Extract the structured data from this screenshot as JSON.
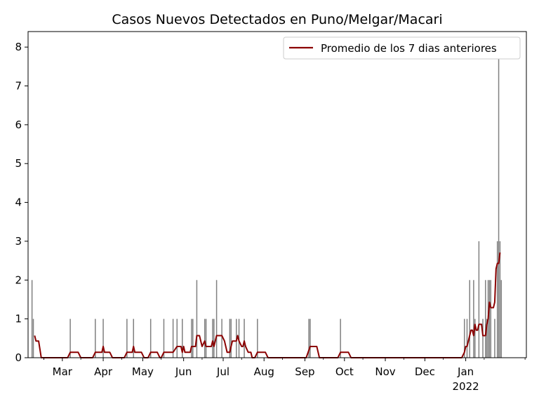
{
  "chart_data": {
    "type": "bar",
    "title": "Casos Nuevos Detectados en Puno/Melgar/Macari",
    "xlabel": "",
    "ylabel": "",
    "x_range": [
      "2021-02-03",
      "2022-02-16"
    ],
    "ylim": [
      0,
      8.4
    ],
    "y_ticks": [
      0,
      1,
      2,
      3,
      4,
      5,
      6,
      7,
      8
    ],
    "x_ticks": [
      {
        "date": "2021-03-01",
        "label": "Mar",
        "sublabel": ""
      },
      {
        "date": "2021-04-01",
        "label": "Apr",
        "sublabel": ""
      },
      {
        "date": "2021-05-01",
        "label": "May",
        "sublabel": ""
      },
      {
        "date": "2021-06-01",
        "label": "Jun",
        "sublabel": ""
      },
      {
        "date": "2021-07-01",
        "label": "Jul",
        "sublabel": ""
      },
      {
        "date": "2021-08-01",
        "label": "Aug",
        "sublabel": ""
      },
      {
        "date": "2021-09-01",
        "label": "Sep",
        "sublabel": ""
      },
      {
        "date": "2021-10-01",
        "label": "Oct",
        "sublabel": ""
      },
      {
        "date": "2021-11-01",
        "label": "Nov",
        "sublabel": ""
      },
      {
        "date": "2021-12-01",
        "label": "Dec",
        "sublabel": ""
      },
      {
        "date": "2022-01-01",
        "label": "Jan",
        "sublabel": "2022"
      }
    ],
    "legend": {
      "placement": "top-right",
      "entries": [
        "Promedio de los 7 dias anteriores"
      ]
    },
    "grid": false,
    "bar_color": "#808080",
    "line_color": "#8b0000",
    "series": [
      {
        "name": "",
        "kind": "bar",
        "points": [
          [
            "2021-02-06",
            2
          ],
          [
            "2021-02-07",
            1
          ],
          [
            "2021-03-07",
            1
          ],
          [
            "2021-03-26",
            1
          ],
          [
            "2021-04-01",
            1
          ],
          [
            "2021-04-19",
            1
          ],
          [
            "2021-04-24",
            1
          ],
          [
            "2021-05-07",
            1
          ],
          [
            "2021-05-17",
            1
          ],
          [
            "2021-05-24",
            1
          ],
          [
            "2021-05-27",
            1
          ],
          [
            "2021-05-31",
            1
          ],
          [
            "2021-06-07",
            1
          ],
          [
            "2021-06-08",
            1
          ],
          [
            "2021-06-11",
            2
          ],
          [
            "2021-06-17",
            1
          ],
          [
            "2021-06-18",
            1
          ],
          [
            "2021-06-23",
            1
          ],
          [
            "2021-06-24",
            1
          ],
          [
            "2021-06-26",
            2
          ],
          [
            "2021-06-30",
            1
          ],
          [
            "2021-07-06",
            1
          ],
          [
            "2021-07-07",
            1
          ],
          [
            "2021-07-11",
            1
          ],
          [
            "2021-07-13",
            1
          ],
          [
            "2021-07-17",
            1
          ],
          [
            "2021-07-27",
            1
          ],
          [
            "2021-09-04",
            1
          ],
          [
            "2021-09-05",
            1
          ],
          [
            "2021-09-28",
            1
          ],
          [
            "2021-12-31",
            1
          ],
          [
            "2022-01-02",
            1
          ],
          [
            "2022-01-04",
            2
          ],
          [
            "2022-01-07",
            2
          ],
          [
            "2022-01-08",
            1
          ],
          [
            "2022-01-11",
            3
          ],
          [
            "2022-01-14",
            1
          ],
          [
            "2022-01-16",
            2
          ],
          [
            "2022-01-17",
            1
          ],
          [
            "2022-01-18",
            2
          ],
          [
            "2022-01-19",
            2
          ],
          [
            "2022-01-20",
            2
          ],
          [
            "2022-01-23",
            1
          ],
          [
            "2022-01-25",
            3
          ],
          [
            "2022-01-26",
            8
          ],
          [
            "2022-01-27",
            3
          ],
          [
            "2022-01-28",
            2
          ]
        ]
      },
      {
        "name": "Promedio de los 7 dias anteriores",
        "kind": "line",
        "points": [
          [
            "2021-02-08",
            0.57
          ],
          [
            "2021-02-09",
            0.43
          ],
          [
            "2021-02-11",
            0.43
          ],
          [
            "2021-02-13",
            0.0
          ],
          [
            "2021-03-05",
            0.0
          ],
          [
            "2021-03-07",
            0.14
          ],
          [
            "2021-03-13",
            0.14
          ],
          [
            "2021-03-15",
            0.0
          ],
          [
            "2021-03-24",
            0.0
          ],
          [
            "2021-03-26",
            0.14
          ],
          [
            "2021-03-31",
            0.14
          ],
          [
            "2021-04-01",
            0.29
          ],
          [
            "2021-04-02",
            0.14
          ],
          [
            "2021-04-06",
            0.14
          ],
          [
            "2021-04-08",
            0.0
          ],
          [
            "2021-04-17",
            0.0
          ],
          [
            "2021-04-19",
            0.14
          ],
          [
            "2021-04-23",
            0.14
          ],
          [
            "2021-04-24",
            0.29
          ],
          [
            "2021-04-25",
            0.14
          ],
          [
            "2021-04-30",
            0.14
          ],
          [
            "2021-05-02",
            0.0
          ],
          [
            "2021-05-05",
            0.0
          ],
          [
            "2021-05-07",
            0.14
          ],
          [
            "2021-05-12",
            0.14
          ],
          [
            "2021-05-14",
            0.0
          ],
          [
            "2021-05-15",
            0.0
          ],
          [
            "2021-05-17",
            0.14
          ],
          [
            "2021-05-23",
            0.14
          ],
          [
            "2021-05-24",
            0.14
          ],
          [
            "2021-05-27",
            0.29
          ],
          [
            "2021-05-30",
            0.29
          ],
          [
            "2021-05-31",
            0.14
          ],
          [
            "2021-06-01",
            0.29
          ],
          [
            "2021-06-02",
            0.14
          ],
          [
            "2021-06-06",
            0.14
          ],
          [
            "2021-06-07",
            0.29
          ],
          [
            "2021-06-10",
            0.29
          ],
          [
            "2021-06-11",
            0.57
          ],
          [
            "2021-06-13",
            0.57
          ],
          [
            "2021-06-15",
            0.29
          ],
          [
            "2021-06-17",
            0.43
          ],
          [
            "2021-06-18",
            0.29
          ],
          [
            "2021-06-22",
            0.29
          ],
          [
            "2021-06-23",
            0.43
          ],
          [
            "2021-06-24",
            0.29
          ],
          [
            "2021-06-26",
            0.57
          ],
          [
            "2021-06-30",
            0.57
          ],
          [
            "2021-07-02",
            0.43
          ],
          [
            "2021-07-04",
            0.14
          ],
          [
            "2021-07-06",
            0.14
          ],
          [
            "2021-07-07",
            0.29
          ],
          [
            "2021-07-08",
            0.43
          ],
          [
            "2021-07-11",
            0.43
          ],
          [
            "2021-07-12",
            0.57
          ],
          [
            "2021-07-13",
            0.43
          ],
          [
            "2021-07-15",
            0.29
          ],
          [
            "2021-07-16",
            0.29
          ],
          [
            "2021-07-17",
            0.43
          ],
          [
            "2021-07-18",
            0.29
          ],
          [
            "2021-07-20",
            0.14
          ],
          [
            "2021-07-22",
            0.14
          ],
          [
            "2021-07-23",
            0.0
          ],
          [
            "2021-07-25",
            0.0
          ],
          [
            "2021-07-27",
            0.14
          ],
          [
            "2021-08-02",
            0.14
          ],
          [
            "2021-08-04",
            0.0
          ],
          [
            "2021-09-02",
            0.0
          ],
          [
            "2021-09-05",
            0.29
          ],
          [
            "2021-09-10",
            0.29
          ],
          [
            "2021-09-12",
            0.0
          ],
          [
            "2021-09-26",
            0.0
          ],
          [
            "2021-09-28",
            0.14
          ],
          [
            "2021-10-04",
            0.14
          ],
          [
            "2021-10-06",
            0.0
          ],
          [
            "2021-12-29",
            0.0
          ],
          [
            "2021-12-31",
            0.14
          ],
          [
            "2022-01-01",
            0.29
          ],
          [
            "2022-01-02",
            0.29
          ],
          [
            "2022-01-03",
            0.43
          ],
          [
            "2022-01-05",
            0.71
          ],
          [
            "2022-01-06",
            0.71
          ],
          [
            "2022-01-07",
            0.57
          ],
          [
            "2022-01-08",
            0.86
          ],
          [
            "2022-01-09",
            0.71
          ],
          [
            "2022-01-10",
            0.71
          ],
          [
            "2022-01-11",
            0.86
          ],
          [
            "2022-01-13",
            0.86
          ],
          [
            "2022-01-14",
            0.57
          ],
          [
            "2022-01-16",
            0.57
          ],
          [
            "2022-01-17",
            0.86
          ],
          [
            "2022-01-18",
            1.0
          ],
          [
            "2022-01-19",
            1.43
          ],
          [
            "2022-01-20",
            1.29
          ],
          [
            "2022-01-22",
            1.29
          ],
          [
            "2022-01-23",
            1.43
          ],
          [
            "2022-01-24",
            2.29
          ],
          [
            "2022-01-25",
            2.43
          ],
          [
            "2022-01-26",
            2.43
          ],
          [
            "2022-01-27",
            2.71
          ]
        ]
      }
    ]
  }
}
